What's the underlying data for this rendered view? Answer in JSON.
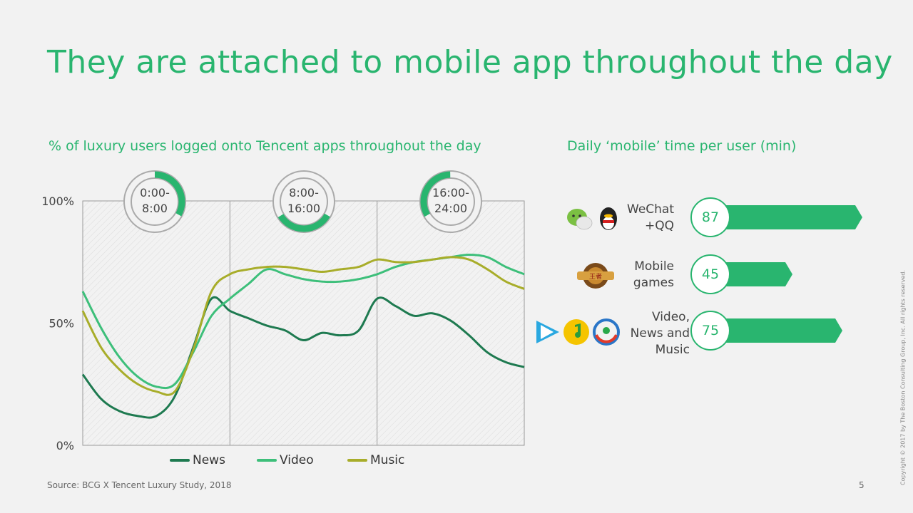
{
  "title": "They are attached to mobile app throughout the day",
  "left_subtitle": "% of luxury users logged onto Tencent apps throughout the day",
  "right_subtitle": "Daily ‘mobile’ time per user (min)",
  "source": "Source: BCG X Tencent Luxury Study, 2018",
  "page_number": "5",
  "copyright": "Copyright © 2017 by The Boston Consulting Group, Inc. All rights reserved.",
  "colors": {
    "accent": "#29b56f",
    "news": "#1e7a50",
    "video": "#3dbf7a",
    "music": "#a8ad2a"
  },
  "time_periods": [
    {
      "label": "0:00-\n8:00",
      "fill_fraction": 0.33
    },
    {
      "label": "8:00-\n16:00",
      "fill_fraction": 0.33
    },
    {
      "label": "16:00-\n24:00",
      "fill_fraction": 0.33
    }
  ],
  "chart_data": {
    "type": "line",
    "x_unit": "hour of day",
    "x": [
      0,
      1,
      2,
      3,
      4,
      5,
      6,
      7,
      8,
      9,
      10,
      11,
      12,
      13,
      14,
      15,
      16,
      17,
      18,
      19,
      20,
      21,
      22,
      23,
      24
    ],
    "ylim": [
      0,
      100
    ],
    "yticks": [
      "0%",
      "50%",
      "100%"
    ],
    "grid": false,
    "legend_position": "bottom",
    "series": [
      {
        "name": "News",
        "color": "#1e7a50",
        "values": [
          29,
          19,
          14,
          12,
          12,
          20,
          40,
          60,
          55,
          52,
          49,
          47,
          43,
          46,
          45,
          47,
          60,
          57,
          53,
          54,
          51,
          45,
          38,
          34,
          32
        ]
      },
      {
        "name": "Video",
        "color": "#3dbf7a",
        "values": [
          63,
          48,
          36,
          28,
          24,
          25,
          38,
          53,
          60,
          66,
          72,
          70,
          68,
          67,
          67,
          68,
          70,
          73,
          75,
          76,
          77,
          78,
          77,
          73,
          70
        ]
      },
      {
        "name": "Music",
        "color": "#a8ad2a",
        "values": [
          55,
          40,
          31,
          25,
          22,
          22,
          39,
          63,
          70,
          72,
          73,
          73,
          72,
          71,
          72,
          73,
          76,
          75,
          75,
          76,
          77,
          76,
          72,
          67,
          64
        ]
      }
    ]
  },
  "bars": [
    {
      "label": "WeChat\n+QQ",
      "value": 87,
      "icons": [
        "wechat-icon",
        "qq-icon"
      ]
    },
    {
      "label": "Mobile\ngames",
      "value": 45,
      "icons": [
        "mobile-game-icon"
      ]
    },
    {
      "label": "Video,\nNews and\nMusic",
      "value": 75,
      "icons": [
        "tencent-video-icon",
        "qq-music-icon",
        "tencent-news-icon"
      ]
    }
  ]
}
